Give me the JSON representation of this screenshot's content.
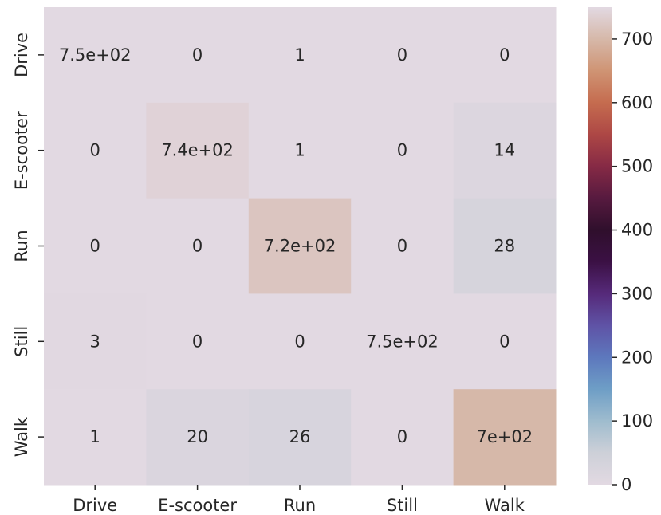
{
  "chart_data": {
    "type": "heatmap",
    "title": "",
    "xlabel": "",
    "ylabel": "",
    "x_categories": [
      "Drive",
      "E-scooter",
      "Run",
      "Still",
      "Walk"
    ],
    "y_categories": [
      "Drive",
      "E-scooter",
      "Run",
      "Still",
      "Walk"
    ],
    "values": [
      [
        750,
        0,
        1,
        0,
        0
      ],
      [
        0,
        740,
        1,
        0,
        14
      ],
      [
        0,
        0,
        720,
        0,
        28
      ],
      [
        3,
        0,
        0,
        750,
        0
      ],
      [
        1,
        20,
        26,
        0,
        700
      ]
    ],
    "annotations": [
      [
        "7.5e+02",
        "0",
        "1",
        "0",
        "0"
      ],
      [
        "0",
        "7.4e+02",
        "1",
        "0",
        "14"
      ],
      [
        "0",
        "0",
        "7.2e+02",
        "0",
        "28"
      ],
      [
        "3",
        "0",
        "0",
        "7.5e+02",
        "0"
      ],
      [
        "1",
        "20",
        "26",
        "0",
        "7e+02"
      ]
    ],
    "colorbar": {
      "vmin": 0,
      "vmax": 750,
      "ticks": [
        0,
        100,
        200,
        300,
        400,
        500,
        600,
        700
      ],
      "colormap": "twilight"
    },
    "grid": false,
    "legend": "colorbar-right"
  }
}
